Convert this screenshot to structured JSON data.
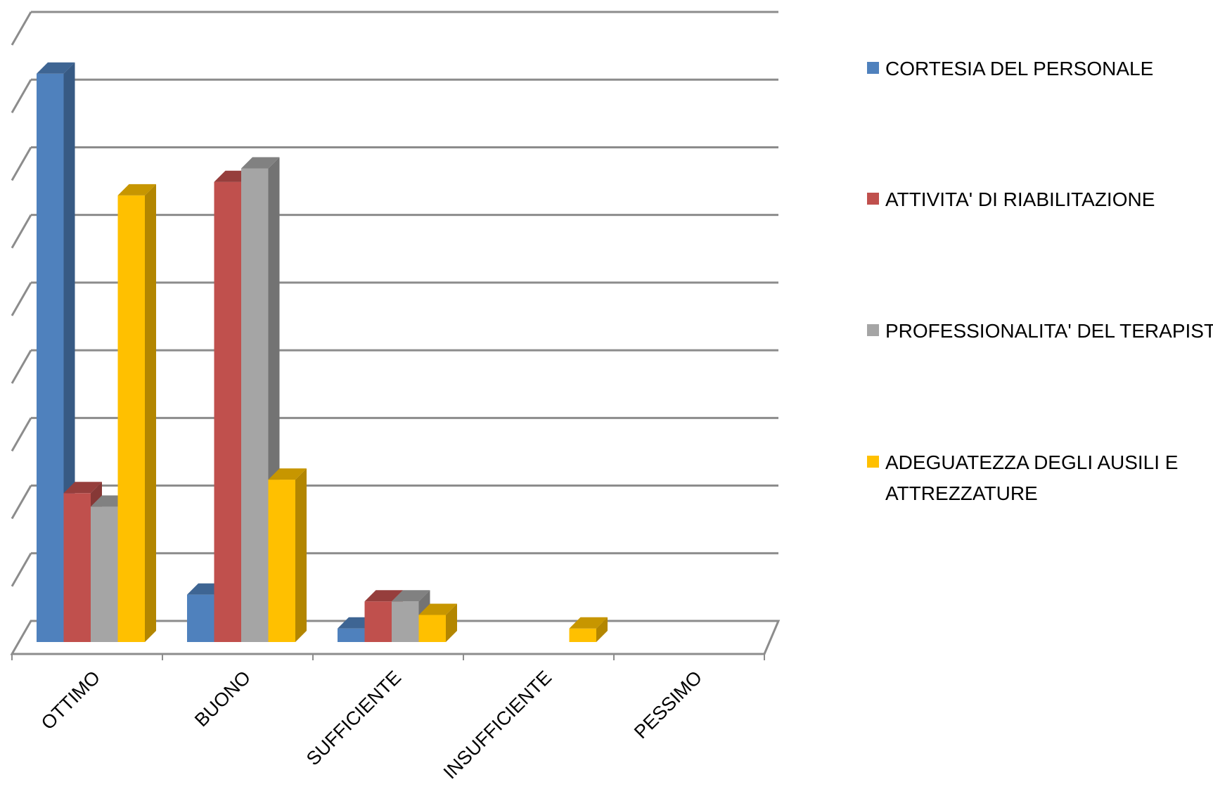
{
  "chart_data": {
    "type": "bar",
    "title": "",
    "xlabel": "",
    "ylabel": "",
    "categories": [
      "OTTIMO",
      "BUONO",
      "SUFFICIENTE",
      "INSUFFICIENTE",
      "PESSIMO"
    ],
    "series": [
      {
        "name": "CORTESIA DEL PERSONALE",
        "color": "#4F81BD",
        "values": [
          42,
          3.5,
          1,
          0,
          0
        ]
      },
      {
        "name": "ATTIVITA' DI RIABILITAZIONE",
        "color": "#C0504D",
        "values": [
          11,
          34,
          3,
          0,
          0
        ]
      },
      {
        "name": "PROFESSIONALITA' DEL TERAPISTA",
        "color": "#A5A5A5",
        "values": [
          10,
          35,
          3,
          0,
          0
        ]
      },
      {
        "name": "ADEGUATEZZA DEGLI AUSILI E ATTREZZATURE",
        "color": "#FFC000",
        "values": [
          33,
          12,
          2,
          1,
          0
        ]
      }
    ],
    "ylim": [
      0,
      45
    ],
    "gridline_step": 5,
    "grid": true,
    "three_d": true,
    "legend_position": "right",
    "axis_value_labels_shown": false
  }
}
